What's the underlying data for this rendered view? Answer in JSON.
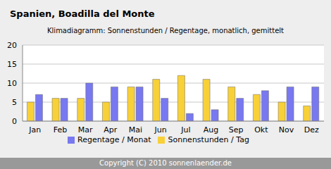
{
  "chart_data": {
    "type": "bar",
    "title": "Spanien, Boadilla del Monte",
    "subtitle": "Klimadiagramm: Sonnenstunden / Regentage, monatlich, gemittelt",
    "footer": "Copyright (C) 2010 sonnenlaender.de",
    "categories": [
      "Jan",
      "Feb",
      "Mar",
      "Apr",
      "Mai",
      "Jun",
      "Jul",
      "Aug",
      "Sep",
      "Okt",
      "Nov",
      "Dez"
    ],
    "series": [
      {
        "name": "Sonnenstunden / Tag",
        "color": "#f8d038",
        "values": [
          5,
          6,
          6,
          5,
          9,
          11,
          12,
          11,
          9,
          7,
          5,
          4
        ]
      },
      {
        "name": "Regentage / Monat",
        "color": "#7878f0",
        "values": [
          7,
          6,
          10,
          9,
          9,
          6,
          2,
          3,
          6,
          8,
          9,
          9
        ]
      }
    ],
    "ylim": [
      0,
      20
    ],
    "yticks": [
      0,
      5,
      10,
      15,
      20
    ],
    "grid": true,
    "legend": "bottom"
  }
}
